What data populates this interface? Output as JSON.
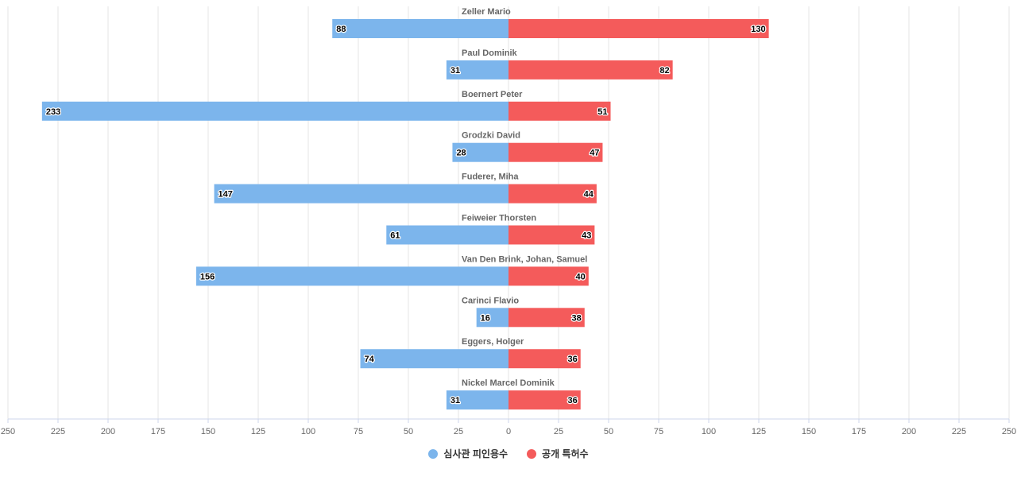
{
  "chart_data": {
    "type": "bar",
    "orientation": "horizontal-diverging",
    "categories": [
      "Zeller Mario",
      "Paul Dominik",
      "Boernert Peter",
      "Grodzki David",
      "Fuderer, Miha",
      "Feiweier Thorsten",
      "Van Den Brink, Johan, Samuel",
      "Carinci Flavio",
      "Eggers, Holger",
      "Nickel Marcel Dominik"
    ],
    "series": [
      {
        "name": "심사관 피인용수",
        "color": "#7cb5ec",
        "side": "left",
        "values": [
          88,
          31,
          233,
          28,
          147,
          61,
          156,
          16,
          74,
          31
        ]
      },
      {
        "name": "공개 특허수",
        "color": "#f45b5b",
        "side": "right",
        "values": [
          130,
          82,
          51,
          47,
          44,
          43,
          40,
          38,
          36,
          36
        ]
      }
    ],
    "xlim": [
      -250,
      250
    ],
    "x_ticks": [
      "250",
      "225",
      "200",
      "175",
      "150",
      "125",
      "100",
      "75",
      "50",
      "25",
      "0",
      "25",
      "50",
      "75",
      "100",
      "125",
      "150",
      "175",
      "200",
      "225",
      "250"
    ],
    "grid": true,
    "data_labels": true,
    "legend_position": "bottom-center",
    "title": "",
    "xlabel": "",
    "ylabel": ""
  }
}
